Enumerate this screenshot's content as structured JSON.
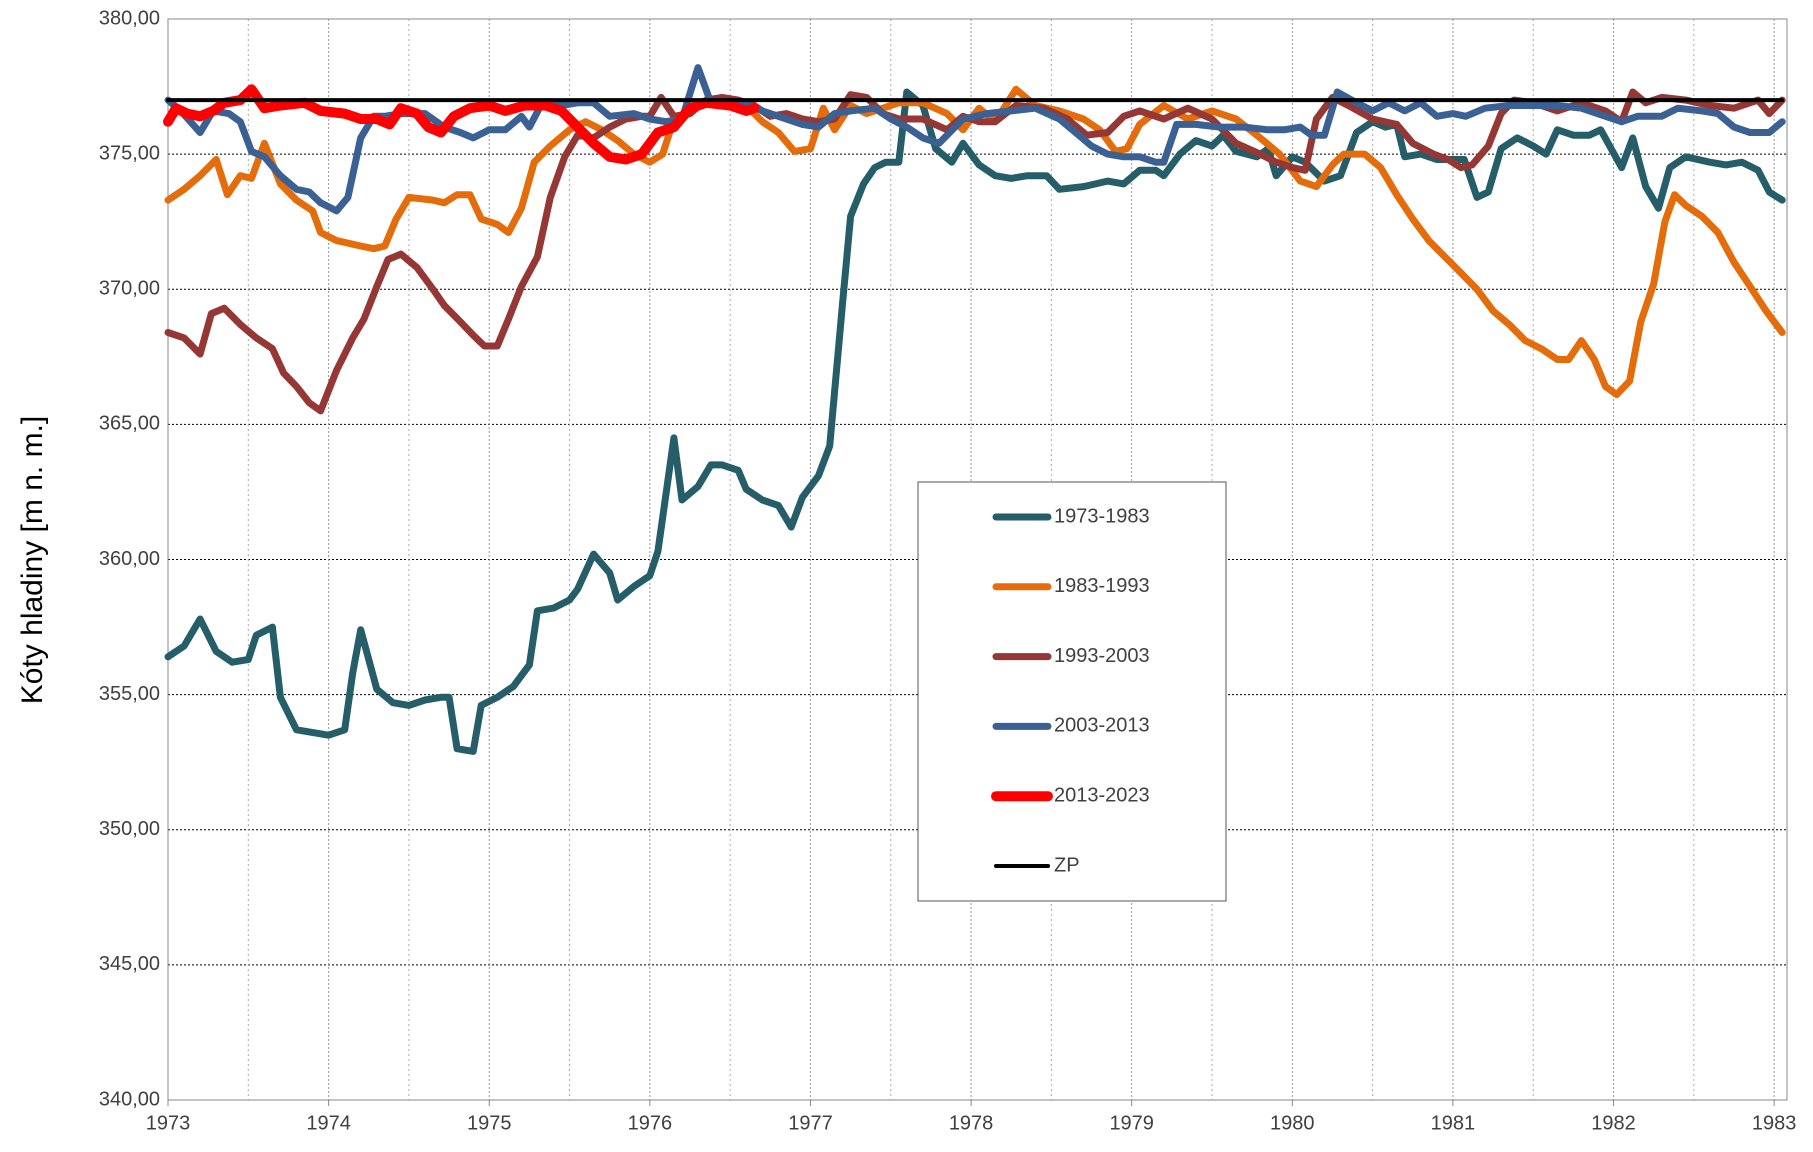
{
  "chart_data": {
    "type": "line",
    "y_label": "Kóty hladiny [m n. m.]",
    "xlim": [
      1973,
      1983.08
    ],
    "xticks": [
      1973,
      1974,
      1975,
      1976,
      1977,
      1978,
      1979,
      1980,
      1981,
      1982,
      1983
    ],
    "ylim": [
      340,
      380
    ],
    "yticks": [
      {
        "value": 340,
        "label": "340,00"
      },
      {
        "value": 345,
        "label": "345,00"
      },
      {
        "value": 350,
        "label": "350,00"
      },
      {
        "value": 355,
        "label": "355,00"
      },
      {
        "value": 360,
        "label": "360,00"
      },
      {
        "value": 365,
        "label": "365,00"
      },
      {
        "value": 370,
        "label": "370,00"
      },
      {
        "value": 375,
        "label": "375,00"
      },
      {
        "value": 380,
        "label": "380,00"
      }
    ],
    "grid": true,
    "legend": "center",
    "series": [
      {
        "name": "1973-1983",
        "color": "#255e69",
        "width": 7,
        "x": [
          1973.0,
          1973.1,
          1973.2,
          1973.3,
          1973.4,
          1973.5,
          1973.55,
          1973.65,
          1973.7,
          1973.8,
          1974.0,
          1974.1,
          1974.15,
          1974.2,
          1974.3,
          1974.4,
          1974.5,
          1974.6,
          1974.7,
          1974.75,
          1974.8,
          1974.9,
          1974.95,
          1975.05,
          1975.15,
          1975.25,
          1975.3,
          1975.4,
          1975.5,
          1975.55,
          1975.65,
          1975.75,
          1975.8,
          1975.9,
          1976.0,
          1976.05,
          1976.15,
          1976.2,
          1976.3,
          1976.38,
          1976.45,
          1976.55,
          1976.6,
          1976.7,
          1976.8,
          1976.88,
          1976.95,
          1977.05,
          1977.12,
          1977.2,
          1977.25,
          1977.33,
          1977.4,
          1977.47,
          1977.55,
          1977.6,
          1977.7,
          1977.78,
          1977.88,
          1977.95,
          1978.05,
          1978.15,
          1978.25,
          1978.35,
          1978.47,
          1978.55,
          1978.7,
          1978.85,
          1978.95,
          1979.05,
          1979.15,
          1979.2,
          1979.3,
          1979.4,
          1979.5,
          1979.57,
          1979.65,
          1979.78,
          1979.85,
          1979.9,
          1980.0,
          1980.08,
          1980.2,
          1980.3,
          1980.4,
          1980.5,
          1980.58,
          1980.65,
          1980.7,
          1980.8,
          1980.9,
          1981.0,
          1981.07,
          1981.15,
          1981.22,
          1981.3,
          1981.4,
          1981.5,
          1981.58,
          1981.65,
          1981.75,
          1981.85,
          1981.92,
          1982.05,
          1982.12,
          1982.2,
          1982.28,
          1982.35,
          1982.45,
          1982.6,
          1982.7,
          1982.8,
          1982.9,
          1982.97,
          1983.05
        ],
        "values": [
          356.4,
          356.8,
          357.8,
          356.6,
          356.2,
          356.3,
          357.2,
          357.5,
          354.9,
          353.7,
          353.5,
          353.7,
          355.8,
          357.4,
          355.2,
          354.7,
          354.6,
          354.8,
          354.9,
          354.9,
          353.0,
          352.9,
          354.6,
          354.9,
          355.3,
          356.1,
          358.1,
          358.2,
          358.5,
          358.9,
          360.2,
          359.5,
          358.5,
          359.0,
          359.4,
          360.3,
          364.5,
          362.2,
          362.7,
          363.5,
          363.5,
          363.3,
          362.6,
          362.2,
          362.0,
          361.2,
          362.3,
          363.1,
          364.2,
          369.5,
          372.7,
          373.9,
          374.5,
          374.7,
          374.7,
          377.3,
          376.8,
          375.2,
          374.7,
          375.4,
          374.6,
          374.2,
          374.1,
          374.2,
          374.2,
          373.7,
          373.8,
          374.0,
          373.9,
          374.4,
          374.4,
          374.2,
          375.0,
          375.5,
          375.3,
          375.7,
          375.1,
          374.9,
          375.2,
          374.2,
          374.9,
          374.7,
          374.0,
          374.2,
          375.8,
          376.2,
          376.0,
          376.1,
          374.9,
          375.0,
          374.8,
          374.8,
          374.8,
          373.4,
          373.6,
          375.2,
          375.6,
          375.3,
          375.0,
          375.9,
          375.7,
          375.7,
          375.9,
          374.5,
          375.6,
          373.8,
          373.0,
          374.5,
          374.9,
          374.7,
          374.6,
          374.7,
          374.4,
          373.6,
          373.3
        ]
      },
      {
        "name": "1983-1993",
        "color": "#e46c0a",
        "width": 7,
        "x": [
          1973.0,
          1973.1,
          1973.2,
          1973.3,
          1973.37,
          1973.45,
          1973.52,
          1973.6,
          1973.7,
          1973.8,
          1973.9,
          1973.95,
          1974.05,
          1974.2,
          1974.28,
          1974.35,
          1974.42,
          1974.5,
          1974.65,
          1974.72,
          1974.8,
          1974.88,
          1974.95,
          1975.05,
          1975.12,
          1975.2,
          1975.28,
          1975.38,
          1975.5,
          1975.6,
          1975.7,
          1975.8,
          1975.9,
          1976.0,
          1976.08,
          1976.15,
          1976.3,
          1976.45,
          1976.6,
          1976.7,
          1976.8,
          1976.9,
          1977.0,
          1977.08,
          1977.15,
          1977.25,
          1977.35,
          1977.55,
          1977.7,
          1977.85,
          1977.95,
          1978.05,
          1978.15,
          1978.28,
          1978.4,
          1978.55,
          1978.7,
          1978.8,
          1978.9,
          1978.97,
          1979.05,
          1979.2,
          1979.35,
          1979.5,
          1979.65,
          1979.8,
          1979.92,
          1980.05,
          1980.15,
          1980.25,
          1980.32,
          1980.45,
          1980.55,
          1980.65,
          1980.75,
          1980.85,
          1980.95,
          1981.05,
          1981.15,
          1981.25,
          1981.35,
          1981.45,
          1981.55,
          1981.65,
          1981.72,
          1981.8,
          1981.88,
          1981.95,
          1982.02,
          1982.1,
          1982.17,
          1982.25,
          1982.32,
          1982.38,
          1982.45,
          1982.55,
          1982.65,
          1982.75,
          1982.85,
          1982.95,
          1983.05
        ],
        "values": [
          373.3,
          373.7,
          374.2,
          374.8,
          373.5,
          374.2,
          374.1,
          375.4,
          373.9,
          373.3,
          372.9,
          372.1,
          371.8,
          371.6,
          371.5,
          371.6,
          372.6,
          373.4,
          373.3,
          373.2,
          373.5,
          373.5,
          372.6,
          372.4,
          372.1,
          373.0,
          374.7,
          375.3,
          375.9,
          376.2,
          375.9,
          375.5,
          375.0,
          374.7,
          375.0,
          376.3,
          376.8,
          376.9,
          376.8,
          376.2,
          375.8,
          375.1,
          375.2,
          376.7,
          375.9,
          376.8,
          376.5,
          376.9,
          376.9,
          376.5,
          375.9,
          376.7,
          376.2,
          377.4,
          376.8,
          376.6,
          376.3,
          375.9,
          375.1,
          375.2,
          376.1,
          376.8,
          376.3,
          376.6,
          376.3,
          375.6,
          375.0,
          374.0,
          373.8,
          374.6,
          375.0,
          375.0,
          374.5,
          373.5,
          372.6,
          371.8,
          371.2,
          370.6,
          370.0,
          369.2,
          368.7,
          368.1,
          367.8,
          367.4,
          367.4,
          368.1,
          367.4,
          366.4,
          366.1,
          366.6,
          368.8,
          370.2,
          372.5,
          373.5,
          373.1,
          372.7,
          372.1,
          371.0,
          370.1,
          369.2,
          368.4
        ]
      },
      {
        "name": "1993-2003",
        "color": "#953735",
        "width": 7,
        "x": [
          1973.0,
          1973.1,
          1973.2,
          1973.27,
          1973.35,
          1973.45,
          1973.55,
          1973.65,
          1973.72,
          1973.8,
          1973.88,
          1973.95,
          1974.05,
          1974.15,
          1974.22,
          1974.3,
          1974.37,
          1974.45,
          1974.55,
          1974.65,
          1974.72,
          1974.82,
          1974.9,
          1974.97,
          1975.05,
          1975.12,
          1975.2,
          1975.3,
          1975.38,
          1975.47,
          1975.55,
          1975.65,
          1975.75,
          1975.85,
          1975.95,
          1976.0,
          1976.07,
          1976.15,
          1976.25,
          1976.35,
          1976.45,
          1976.55,
          1976.65,
          1976.75,
          1976.85,
          1976.95,
          1977.05,
          1977.15,
          1977.25,
          1977.35,
          1977.45,
          1977.55,
          1977.7,
          1977.85,
          1977.95,
          1978.05,
          1978.15,
          1978.28,
          1978.45,
          1978.6,
          1978.72,
          1978.85,
          1978.95,
          1979.05,
          1979.2,
          1979.35,
          1979.5,
          1979.65,
          1979.8,
          1979.9,
          1980.0,
          1980.08,
          1980.15,
          1980.25,
          1980.38,
          1980.5,
          1980.65,
          1980.75,
          1980.88,
          1980.97,
          1981.05,
          1981.12,
          1981.22,
          1981.3,
          1981.38,
          1981.5,
          1981.65,
          1981.8,
          1981.95,
          1982.05,
          1982.12,
          1982.2,
          1982.3,
          1982.45,
          1982.6,
          1982.75,
          1982.9,
          1982.97,
          1983.05
        ],
        "values": [
          368.4,
          368.2,
          367.6,
          369.1,
          369.3,
          368.7,
          368.2,
          367.8,
          366.9,
          366.4,
          365.8,
          365.5,
          367.0,
          368.2,
          368.9,
          370.1,
          371.1,
          371.3,
          370.8,
          370.0,
          369.4,
          368.8,
          368.3,
          367.9,
          367.9,
          368.9,
          370.1,
          371.2,
          373.4,
          374.9,
          375.7,
          375.6,
          376.0,
          376.3,
          376.4,
          376.4,
          377.1,
          376.4,
          376.5,
          377.0,
          377.1,
          377.0,
          376.8,
          376.4,
          376.5,
          376.3,
          376.2,
          376.3,
          377.2,
          377.1,
          376.5,
          376.3,
          376.3,
          375.9,
          376.4,
          376.2,
          376.2,
          376.8,
          376.7,
          376.3,
          375.7,
          375.8,
          376.4,
          376.6,
          376.3,
          376.7,
          376.3,
          375.4,
          375.0,
          374.7,
          374.5,
          374.4,
          376.3,
          377.1,
          376.7,
          376.3,
          376.1,
          375.4,
          375.0,
          374.8,
          374.5,
          374.6,
          375.3,
          376.5,
          377.0,
          376.9,
          376.6,
          376.9,
          376.6,
          376.2,
          377.3,
          376.9,
          377.1,
          377.0,
          376.8,
          376.7,
          377.0,
          376.5,
          377.0
        ]
      },
      {
        "name": "2003-2013",
        "color": "#3a6094",
        "width": 7,
        "x": [
          1973.0,
          1973.08,
          1973.2,
          1973.28,
          1973.38,
          1973.45,
          1973.52,
          1973.6,
          1973.7,
          1973.8,
          1973.88,
          1973.95,
          1974.05,
          1974.12,
          1974.2,
          1974.28,
          1974.35,
          1974.45,
          1974.6,
          1974.72,
          1974.82,
          1974.9,
          1975.0,
          1975.1,
          1975.2,
          1975.25,
          1975.33,
          1975.45,
          1975.55,
          1975.65,
          1975.75,
          1975.9,
          1976.0,
          1976.1,
          1976.2,
          1976.3,
          1976.38,
          1976.5,
          1976.6,
          1976.7,
          1976.85,
          1976.95,
          1977.05,
          1977.15,
          1977.25,
          1977.4,
          1977.5,
          1977.6,
          1977.7,
          1977.8,
          1977.95,
          1978.1,
          1978.25,
          1978.4,
          1978.55,
          1978.65,
          1978.75,
          1978.85,
          1978.95,
          1979.05,
          1979.15,
          1979.2,
          1979.28,
          1979.4,
          1979.55,
          1979.7,
          1979.85,
          1979.95,
          1980.05,
          1980.12,
          1980.2,
          1980.28,
          1980.4,
          1980.5,
          1980.6,
          1980.7,
          1980.8,
          1980.9,
          1981.0,
          1981.08,
          1981.2,
          1981.35,
          1981.5,
          1981.65,
          1981.8,
          1981.95,
          1982.05,
          1982.15,
          1982.3,
          1982.4,
          1982.55,
          1982.65,
          1982.75,
          1982.85,
          1982.97,
          1983.05
        ],
        "values": [
          377.0,
          376.6,
          375.8,
          376.6,
          376.5,
          376.2,
          375.1,
          374.9,
          374.2,
          373.7,
          373.6,
          373.2,
          372.9,
          373.4,
          375.6,
          376.4,
          376.4,
          376.5,
          376.5,
          376.0,
          375.8,
          375.6,
          375.9,
          375.9,
          376.4,
          376.0,
          376.9,
          376.8,
          376.9,
          376.9,
          376.4,
          376.5,
          376.3,
          376.2,
          376.3,
          378.2,
          376.9,
          376.9,
          376.9,
          376.6,
          376.3,
          376.1,
          376.0,
          376.5,
          376.6,
          376.7,
          376.3,
          376.0,
          375.6,
          375.4,
          376.3,
          376.5,
          376.6,
          376.7,
          376.3,
          375.8,
          375.3,
          375.0,
          374.9,
          374.9,
          374.7,
          374.7,
          376.1,
          376.1,
          376.0,
          376.0,
          375.9,
          375.9,
          376.0,
          375.7,
          375.7,
          377.3,
          376.9,
          376.6,
          376.9,
          376.6,
          376.9,
          376.4,
          376.5,
          376.4,
          376.7,
          376.8,
          376.8,
          376.8,
          376.7,
          376.4,
          376.2,
          376.4,
          376.4,
          376.7,
          376.6,
          376.5,
          376.0,
          375.8,
          375.8,
          376.2
        ]
      },
      {
        "name": "2013-2023",
        "color": "#ff0000",
        "width": 10,
        "x": [
          1973.0,
          1973.05,
          1973.12,
          1973.2,
          1973.28,
          1973.35,
          1973.45,
          1973.52,
          1973.6,
          1973.7,
          1973.85,
          1973.95,
          1974.1,
          1974.2,
          1974.3,
          1974.38,
          1974.45,
          1974.55,
          1974.62,
          1974.7,
          1974.78,
          1974.88,
          1975.0,
          1975.1,
          1975.22,
          1975.35,
          1975.45,
          1975.55,
          1975.65,
          1975.75,
          1975.85,
          1975.95,
          1976.05,
          1976.15,
          1976.25,
          1976.35,
          1976.5,
          1976.6,
          1976.65
        ],
        "values": [
          376.2,
          376.7,
          376.5,
          376.4,
          376.6,
          376.9,
          377.0,
          377.4,
          376.7,
          376.8,
          376.9,
          376.6,
          376.5,
          376.3,
          376.3,
          376.1,
          376.7,
          376.5,
          376.0,
          375.8,
          376.4,
          376.7,
          376.8,
          376.6,
          376.8,
          376.8,
          376.6,
          376.0,
          375.4,
          374.9,
          374.8,
          375.0,
          375.8,
          376.0,
          376.7,
          376.9,
          376.8,
          376.6,
          376.7
        ]
      },
      {
        "name": "ZP",
        "color": "#000000",
        "width": 4,
        "x": [
          1973.0,
          1983.05
        ],
        "values": [
          377.0,
          377.0
        ]
      }
    ]
  }
}
